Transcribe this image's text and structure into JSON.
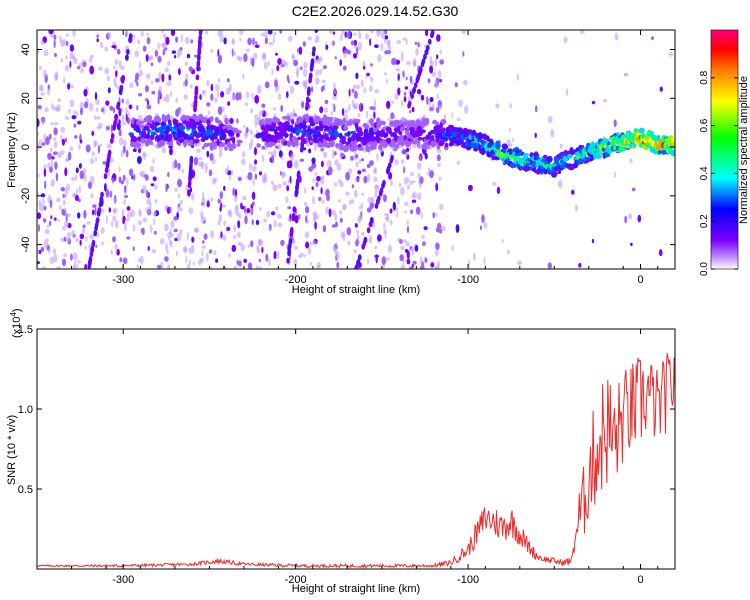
{
  "title": "C2E2.2026.029.14.52.G30",
  "chart_data": [
    {
      "type": "heatmap",
      "title": "C2E2.2026.029.14.52.G30",
      "xlabel": "Height of straight line (km)",
      "ylabel": "Frequency (Hz)",
      "xlim": [
        -350,
        20
      ],
      "ylim": [
        -50,
        48
      ],
      "xticks": [
        -300,
        -200,
        -100,
        0
      ],
      "yticks": [
        -40,
        -20,
        0,
        20,
        40
      ],
      "xtick_labels": [
        "-300",
        "-200",
        "-100",
        "0"
      ],
      "ytick_labels": [
        "-40",
        "-20",
        "0",
        "20",
        "40"
      ],
      "colorbar": {
        "label": "Normalized spectral amplitude",
        "range": [
          0,
          1
        ],
        "ticks": [
          "0.0",
          "0.2",
          "0.4",
          "0.6",
          "0.8"
        ],
        "tick_values": [
          0,
          0.2,
          0.4,
          0.6,
          0.8
        ],
        "colors": [
          "#ffffff",
          "#7b00ff",
          "#0000ff",
          "#00ffff",
          "#00ff00",
          "#ffff00",
          "#ff8800",
          "#ff0000",
          "#ff0080"
        ]
      },
      "ridge": {
        "height_km": [
          -290,
          -270,
          -250,
          -230,
          -210,
          -190,
          -170,
          -150,
          -130,
          -110,
          -100,
          -90,
          -80,
          -70,
          -60,
          -50,
          -45,
          -40,
          -30,
          -20,
          -10,
          0,
          10,
          20
        ],
        "frequency_hz": [
          6,
          7,
          6,
          4,
          6,
          7,
          5,
          5,
          6,
          5,
          3,
          1,
          -3,
          -5,
          -7,
          -8,
          -6,
          -5,
          -2,
          0,
          2,
          4,
          1,
          1
        ],
        "peak_amplitude": [
          0.35,
          0.45,
          0.4,
          0.25,
          0.35,
          0.4,
          0.35,
          0.3,
          0.25,
          0.4,
          0.45,
          0.5,
          0.6,
          0.6,
          0.55,
          0.5,
          0.45,
          0.5,
          0.6,
          0.7,
          0.8,
          0.95,
          0.9,
          0.85
        ]
      }
    },
    {
      "type": "line",
      "xlabel": "Height of straight line (km)",
      "ylabel": "SNR (10 * v/v)",
      "scale_label": "(x10",
      "scale_exponent": "4",
      "scale_suffix": ")",
      "xlim": [
        -350,
        20
      ],
      "ylim": [
        0,
        1.5
      ],
      "xticks": [
        -300,
        -200,
        -100,
        0
      ],
      "yticks": [
        0.5,
        1.0,
        1.5
      ],
      "xtick_labels": [
        "-300",
        "-200",
        "-100",
        "0"
      ],
      "ytick_labels": [
        "0.5",
        "1.0",
        "1.5"
      ],
      "series": [
        {
          "name": "SNR",
          "color": "#ee2a2a",
          "x": [
            -350,
            -300,
            -260,
            -245,
            -230,
            -200,
            -150,
            -120,
            -110,
            -100,
            -95,
            -90,
            -85,
            -80,
            -75,
            -70,
            -65,
            -60,
            -55,
            -50,
            -45,
            -40,
            -38,
            -35,
            -32,
            -30,
            -25,
            -20,
            -15,
            -10,
            -5,
            0,
            5,
            10,
            15,
            20
          ],
          "y": [
            0.02,
            0.02,
            0.03,
            0.05,
            0.03,
            0.02,
            0.02,
            0.02,
            0.04,
            0.12,
            0.22,
            0.32,
            0.3,
            0.26,
            0.3,
            0.22,
            0.14,
            0.08,
            0.06,
            0.05,
            0.04,
            0.05,
            0.2,
            0.35,
            0.45,
            0.6,
            0.75,
            0.9,
            0.8,
            0.95,
            1.0,
            1.05,
            1.1,
            1.0,
            1.1,
            1.2
          ],
          "noise_amplitude": [
            0.005,
            0.008,
            0.01,
            0.015,
            0.01,
            0.01,
            0.01,
            0.01,
            0.02,
            0.05,
            0.08,
            0.1,
            0.1,
            0.1,
            0.1,
            0.08,
            0.05,
            0.03,
            0.02,
            0.02,
            0.02,
            0.03,
            0.1,
            0.2,
            0.25,
            0.3,
            0.35,
            0.4,
            0.35,
            0.3,
            0.3,
            0.3,
            0.25,
            0.25,
            0.25,
            0.25
          ]
        }
      ]
    }
  ]
}
